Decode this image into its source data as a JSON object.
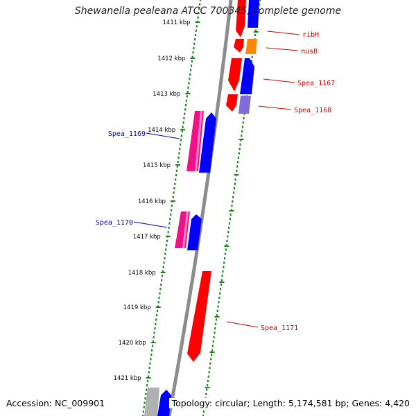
{
  "title": "Shewanella pealeana ATCC 700345, complete genome",
  "footer": {
    "accession": "Accession: NC_009901",
    "summary": "Topology: circular; Length: 5,174,581 bp; Genes: 4,420"
  },
  "colors": {
    "backbone": "#8c8c8c",
    "ruler_dots": "#1a8a1a",
    "label_forward": "#cc0000",
    "label_reverse": "#0000cc",
    "gene_red": "#ff0000",
    "gene_blue": "#0000ff",
    "gene_magenta": "#ee1188",
    "gene_orange": "#ff8800",
    "gene_lavender": "#7f6bd9",
    "gene_grey": "#b0b0b0"
  },
  "ticks": [
    "1411 kbp",
    "1412 kbp",
    "1413 kbp",
    "1414 kbp",
    "1415 kbp",
    "1416 kbp",
    "1417 kbp",
    "1418 kbp",
    "1419 kbp",
    "1420 kbp",
    "1421 kbp"
  ],
  "gene_labels": [
    {
      "name": "ribH",
      "strand": "forward"
    },
    {
      "name": "nusB",
      "strand": "forward"
    },
    {
      "name": "Spea_1167",
      "strand": "forward"
    },
    {
      "name": "Spea_1168",
      "strand": "forward"
    },
    {
      "name": "Spea_1169",
      "strand": "reverse"
    },
    {
      "name": "Spea_1170",
      "strand": "reverse"
    },
    {
      "name": "Spea_1171",
      "strand": "forward"
    }
  ]
}
